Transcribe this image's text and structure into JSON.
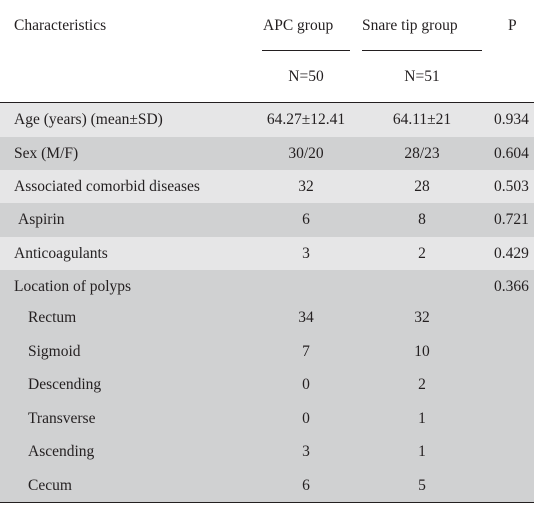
{
  "header": {
    "characteristics": "Characteristics",
    "apc_group": "APC group",
    "snare_group": "Snare tip group",
    "p": "P",
    "apc_n": "N=50",
    "snare_n": "N=51"
  },
  "rows": [
    {
      "label": "Age (years) (mean±SD)",
      "apc": "64.27±12.41",
      "snare": "64.11±21",
      "p": "0.934"
    },
    {
      "label": "Sex (M/F)",
      "apc": "30/20",
      "snare": "28/23",
      "p": "0.604"
    },
    {
      "label": "Associated comorbid diseases",
      "apc": "32",
      "snare": "28",
      "p": "0.503"
    },
    {
      "label": "Aspirin",
      "apc": "6",
      "snare": "8",
      "p": "0.721"
    },
    {
      "label": "Anticoagulants",
      "apc": "3",
      "snare": "2",
      "p": "0.429"
    },
    {
      "label": "Location of polyps",
      "apc": "",
      "snare": "",
      "p": "0.366"
    },
    {
      "label": "Rectum",
      "apc": "34",
      "snare": "32",
      "p": ""
    },
    {
      "label": "Sigmoid",
      "apc": "7",
      "snare": "10",
      "p": ""
    },
    {
      "label": "Descending",
      "apc": "0",
      "snare": "2",
      "p": ""
    },
    {
      "label": "Transverse",
      "apc": "0",
      "snare": "1",
      "p": ""
    },
    {
      "label": "Ascending",
      "apc": "3",
      "snare": "1",
      "p": ""
    },
    {
      "label": "Cecum",
      "apc": "6",
      "snare": "5",
      "p": ""
    }
  ]
}
